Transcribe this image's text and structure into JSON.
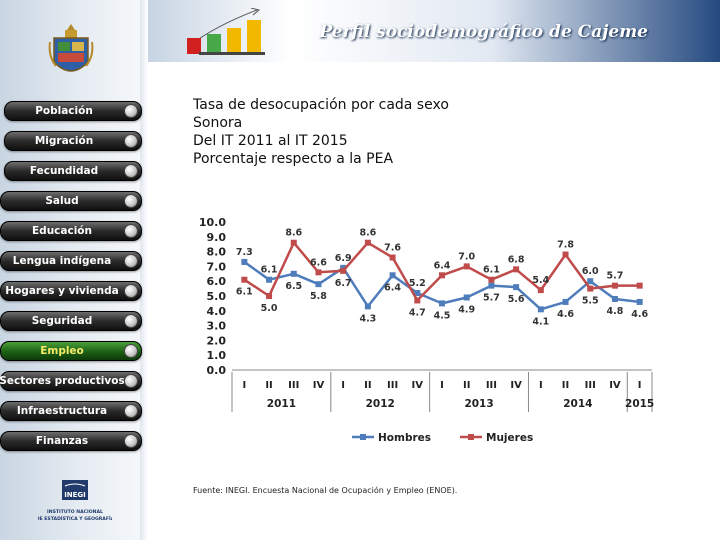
{
  "header": {
    "title": "Perfil sociodemográfico de Cajeme"
  },
  "menu": {
    "items": [
      {
        "label": "Población"
      },
      {
        "label": "Migración"
      },
      {
        "label": "Fecundidad"
      },
      {
        "label": "Salud"
      },
      {
        "label": "Educación"
      },
      {
        "label": "Lengua indígena"
      },
      {
        "label": "Hogares y vivienda"
      },
      {
        "label": "Seguridad"
      },
      {
        "label": "Empleo"
      },
      {
        "label": "Sectores productivos"
      },
      {
        "label": "Infraestructura"
      },
      {
        "label": "Finanzas"
      }
    ],
    "active_index": 8
  },
  "heading": {
    "line1": "Tasa de desocupación por cada sexo",
    "line2": "Sonora",
    "line3": "Del IT 2011 al IT 2015",
    "line4": "Porcentaje respecto a la PEA"
  },
  "chart_data": {
    "type": "line",
    "quarters": [
      "I",
      "II",
      "III",
      "IV",
      "I",
      "II",
      "III",
      "IV",
      "I",
      "II",
      "III",
      "IV",
      "I",
      "II",
      "III",
      "IV",
      "I"
    ],
    "years": [
      {
        "label": "2011",
        "quarters": 4
      },
      {
        "label": "2012",
        "quarters": 4
      },
      {
        "label": "2013",
        "quarters": 4
      },
      {
        "label": "2014",
        "quarters": 4
      },
      {
        "label": "2015",
        "quarters": 1
      }
    ],
    "ylim": [
      0,
      10
    ],
    "yticks": [
      "0.0",
      "1.0",
      "2.0",
      "3.0",
      "4.0",
      "5.0",
      "6.0",
      "7.0",
      "8.0",
      "9.0",
      "10.0"
    ],
    "series": [
      {
        "name": "Hombres",
        "color": "#4f7cba",
        "values": [
          7.3,
          6.1,
          6.5,
          5.8,
          6.9,
          4.3,
          6.4,
          5.2,
          4.5,
          4.9,
          5.7,
          5.6,
          4.1,
          4.6,
          6.0,
          4.8,
          4.6
        ],
        "labels": [
          "7.3",
          "6.1",
          "6.5",
          "5.8",
          "6.9",
          "4.3",
          "6.4",
          "5.2",
          "4.5",
          "4.9",
          "5.7",
          "5.6",
          "4.1",
          "4.6",
          "6.0",
          "4.8",
          "4.6"
        ]
      },
      {
        "name": "Mujeres",
        "color": "#bf4b4b",
        "values": [
          6.1,
          5.0,
          8.6,
          6.6,
          6.7,
          8.6,
          7.6,
          4.7,
          6.4,
          7.0,
          6.1,
          6.8,
          5.4,
          7.8,
          5.5,
          5.7,
          5.7
        ],
        "labels": [
          "6.1",
          "5.0",
          "8.6",
          "6.6",
          "6.7",
          "8.6",
          "7.6",
          "4.7",
          "6.4",
          "7.0",
          "6.1",
          "6.8",
          "5.4",
          "7.8",
          "5.5",
          "5.7",
          ""
        ]
      }
    ],
    "legend": "bottom"
  },
  "source": "Fuente: INEGI. Encuesta Nacional de Ocupación y Empleo (ENOE).",
  "inegi": {
    "mark": "INEGI",
    "line1": "INSTITUTO NACIONAL",
    "line2": "DE ESTADÍSTICA Y GEOGRAFÍA"
  },
  "colors": {
    "hombres": "#4f7cba",
    "mujeres": "#bf4b4b",
    "header_dark": "#254a80",
    "active_menu": "#1c5f14"
  }
}
